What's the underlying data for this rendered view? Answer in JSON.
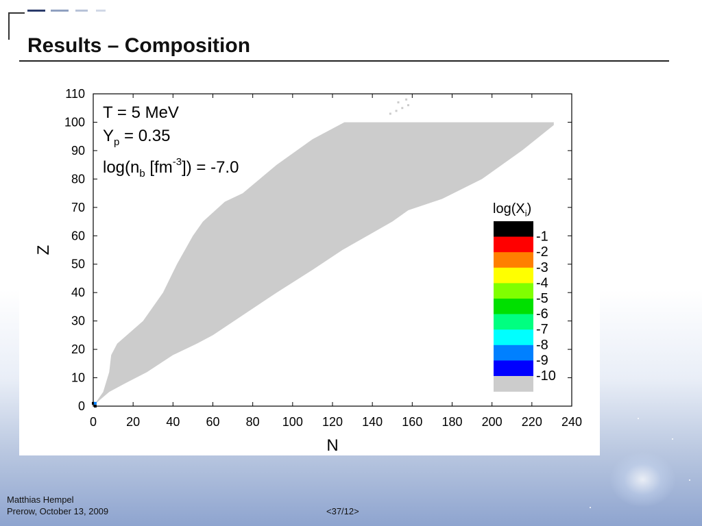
{
  "slide": {
    "title": "Results – Composition",
    "author": "Matthias Hempel",
    "event": "Prerow, October 13, 2009",
    "page": "<37/12>"
  },
  "theme": {
    "accent": "#1f2f5f",
    "region_color": "#cccccc",
    "frame_color": "#000000"
  },
  "chart_data": {
    "type": "heatmap",
    "xlabel": "N",
    "ylabel": "Z",
    "xlim": [
      0,
      240
    ],
    "ylim": [
      0,
      110
    ],
    "xticks": [
      0,
      20,
      40,
      60,
      80,
      100,
      120,
      140,
      160,
      180,
      200,
      220,
      240
    ],
    "yticks": [
      0,
      10,
      20,
      30,
      40,
      50,
      60,
      70,
      80,
      90,
      100,
      110
    ],
    "annotations": {
      "temperature": "T = 5 MeV",
      "yp_base": "Y",
      "yp_sub": "p",
      "yp_rest": " = 0.35",
      "nb_a": "log(n",
      "nb_sub": "b",
      "nb_b": " [fm",
      "nb_sup": "-3",
      "nb_c": "]) = -7.0"
    },
    "colorbar": {
      "title_base": "log(X",
      "title_sub": "i",
      "title_end": ")",
      "levels": [
        {
          "label": "-1",
          "color": "#000000"
        },
        {
          "label": "-2",
          "color": "#ff0000"
        },
        {
          "label": "-3",
          "color": "#ff7f00"
        },
        {
          "label": "-4",
          "color": "#ffff00"
        },
        {
          "label": "-5",
          "color": "#80ff00"
        },
        {
          "label": "-6",
          "color": "#00e000"
        },
        {
          "label": "-7",
          "color": "#00ff80"
        },
        {
          "label": "-8",
          "color": "#00ffff"
        },
        {
          "label": "-9",
          "color": "#0080ff"
        },
        {
          "label": "-10",
          "color": "#0000ff"
        },
        {
          "label": "",
          "color": "#cccccc"
        }
      ]
    },
    "region_lower_boundary": [
      [
        0,
        0
      ],
      [
        3,
        2
      ],
      [
        8,
        5
      ],
      [
        16,
        8
      ],
      [
        27,
        12
      ],
      [
        40,
        18
      ],
      [
        52,
        22
      ],
      [
        60,
        25
      ],
      [
        75,
        32
      ],
      [
        92,
        40
      ],
      [
        110,
        48
      ],
      [
        125,
        55
      ],
      [
        140,
        61
      ],
      [
        150,
        65
      ],
      [
        158,
        69
      ],
      [
        175,
        73
      ],
      [
        195,
        80
      ],
      [
        215,
        90
      ],
      [
        231,
        99
      ]
    ],
    "region_upper_boundary": [
      [
        231,
        100
      ],
      [
        126,
        100
      ],
      [
        110,
        94
      ],
      [
        92,
        85
      ],
      [
        75,
        75
      ],
      [
        66,
        72
      ],
      [
        55,
        65
      ],
      [
        50,
        60
      ],
      [
        42,
        50
      ],
      [
        35,
        40
      ],
      [
        25,
        30
      ],
      [
        12,
        22
      ],
      [
        9,
        18
      ],
      [
        8,
        12
      ],
      [
        5,
        5
      ],
      [
        2,
        2
      ],
      [
        0,
        0
      ]
    ],
    "spur_points": [
      [
        149,
        103
      ],
      [
        152,
        104
      ],
      [
        155,
        105
      ],
      [
        158,
        106
      ],
      [
        157,
        108
      ],
      [
        153,
        107
      ]
    ],
    "light_nuclei": [
      {
        "n": 0,
        "z": 1,
        "level": "-1"
      },
      {
        "n": 1,
        "z": 1,
        "level": "-9"
      },
      {
        "n": 1,
        "z": 0,
        "level": "-1"
      }
    ]
  }
}
